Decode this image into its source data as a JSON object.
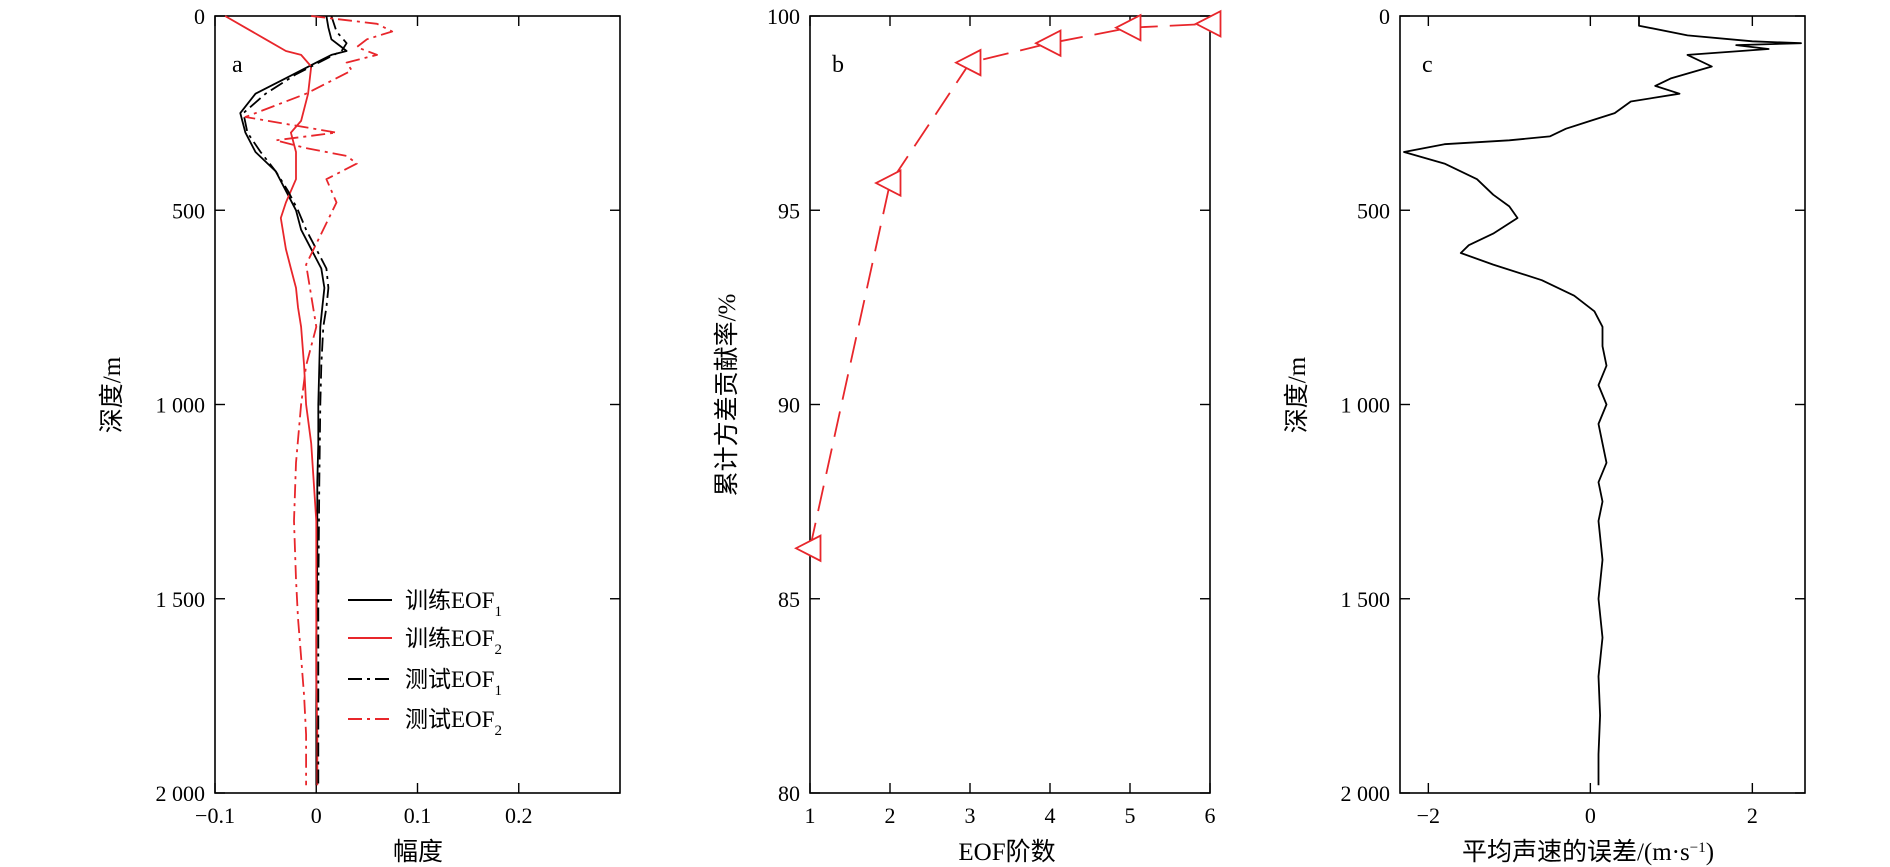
{
  "colors": {
    "black": "#000000",
    "red": "#e8262b"
  },
  "chart_data": [
    {
      "panel": "a",
      "type": "line",
      "xlabel": "幅度",
      "ylabel": "深度/m",
      "xlim": [
        -0.1,
        0.3
      ],
      "ylim": [
        2000,
        0
      ],
      "y_inverted": true,
      "xticks": [
        -0.1,
        0,
        0.1,
        0.2
      ],
      "xtick_labels": [
        "−0.1",
        "0",
        "0.1",
        "0.2"
      ],
      "yticks": [
        0,
        500,
        1000,
        1500,
        2000
      ],
      "ytick_labels": [
        "0",
        "500",
        "1 000",
        "1 500",
        "2 000"
      ],
      "legend_position": "bottom-right",
      "series": [
        {
          "name": "训练EOF",
          "subscript": "1",
          "color": "#000000",
          "style": "solid",
          "x": [
            0.01,
            0.012,
            0.015,
            0.025,
            0.03,
            0.015,
            0.0,
            -0.03,
            -0.06,
            -0.075,
            -0.07,
            -0.06,
            -0.04,
            -0.03,
            -0.02,
            -0.015,
            -0.005,
            0.005,
            0.008,
            0.006,
            0.004,
            0.003,
            0.002,
            0.002,
            0.001,
            0.001,
            0.0,
            0.0,
            0.0
          ],
          "y": [
            0,
            30,
            60,
            80,
            90,
            100,
            120,
            160,
            200,
            250,
            300,
            350,
            400,
            450,
            500,
            550,
            600,
            650,
            700,
            750,
            800,
            900,
            1000,
            1100,
            1200,
            1400,
            1600,
            1800,
            1980
          ]
        },
        {
          "name": "训练EOF",
          "subscript": "2",
          "color": "#e8262b",
          "style": "solid",
          "x": [
            -0.09,
            -0.07,
            -0.05,
            -0.03,
            -0.015,
            -0.005,
            -0.008,
            -0.015,
            -0.025,
            -0.02,
            -0.02,
            -0.03,
            -0.035,
            -0.03,
            -0.025,
            -0.02,
            -0.018,
            -0.015,
            -0.012,
            -0.01,
            -0.005,
            0.0,
            0.0,
            0.0,
            0.001,
            0.001
          ],
          "y": [
            0,
            30,
            60,
            90,
            100,
            130,
            200,
            270,
            300,
            350,
            420,
            480,
            520,
            600,
            650,
            700,
            750,
            800,
            900,
            1000,
            1100,
            1300,
            1500,
            1700,
            1850,
            1980
          ]
        },
        {
          "name": "测试EOF",
          "subscript": "1",
          "color": "#000000",
          "style": "dashdot",
          "x": [
            0.015,
            0.02,
            0.03,
            0.025,
            0.01,
            -0.02,
            -0.05,
            -0.072,
            -0.068,
            -0.055,
            -0.04,
            -0.028,
            -0.018,
            -0.01,
            0.0,
            0.01,
            0.012,
            0.01,
            0.007,
            0.005,
            0.004,
            0.003,
            0.002,
            0.002,
            0.002
          ],
          "y": [
            0,
            40,
            70,
            90,
            110,
            150,
            200,
            250,
            300,
            350,
            400,
            450,
            500,
            550,
            600,
            650,
            700,
            750,
            800,
            900,
            1000,
            1200,
            1500,
            1800,
            1980
          ]
        },
        {
          "name": "测试EOF",
          "subscript": "2",
          "color": "#e8262b",
          "style": "dashdot",
          "x": [
            -0.005,
            0.06,
            0.075,
            0.05,
            0.04,
            0.06,
            0.03,
            0.035,
            0.02,
            -0.01,
            -0.07,
            0.02,
            -0.04,
            -0.01,
            0.03,
            0.04,
            0.01,
            0.02,
            0.005,
            -0.01,
            -0.005,
            0.0,
            -0.01,
            -0.015,
            -0.02,
            -0.022,
            -0.02,
            -0.018,
            -0.015,
            -0.012,
            -0.01,
            -0.01
          ],
          "y": [
            0,
            20,
            40,
            60,
            80,
            100,
            120,
            140,
            160,
            200,
            260,
            300,
            320,
            340,
            360,
            380,
            420,
            480,
            560,
            640,
            720,
            800,
            900,
            1000,
            1150,
            1300,
            1450,
            1550,
            1650,
            1750,
            1850,
            1980
          ]
        }
      ]
    },
    {
      "panel": "b",
      "type": "line",
      "xlabel": "EOF阶数",
      "ylabel": "累计方差贡献率/%",
      "xlim": [
        1,
        6
      ],
      "ylim": [
        80,
        100
      ],
      "xticks": [
        1,
        2,
        3,
        4,
        5,
        6
      ],
      "xtick_labels": [
        "1",
        "2",
        "3",
        "4",
        "5",
        "6"
      ],
      "yticks": [
        80,
        85,
        90,
        95,
        100
      ],
      "ytick_labels": [
        "80",
        "85",
        "90",
        "95",
        "100"
      ],
      "marker": "triangle-left",
      "line_style": "dashed",
      "color": "#e8262b",
      "x": [
        1,
        2,
        3,
        4,
        5,
        6
      ],
      "values": [
        86.3,
        95.7,
        98.8,
        99.3,
        99.7,
        99.8
      ]
    },
    {
      "panel": "c",
      "type": "line",
      "xlabel": "平均声速的误差/(m·s",
      "xlabel_superscript": "−1",
      "xlabel_suffix": ")",
      "ylabel": "深度/m",
      "xlim": [
        -2.35,
        2.65
      ],
      "ylim": [
        2000,
        0
      ],
      "y_inverted": true,
      "xticks": [
        -2,
        0,
        2
      ],
      "xtick_labels": [
        "−2",
        "0",
        "2"
      ],
      "yticks": [
        0,
        500,
        1000,
        1500,
        2000
      ],
      "ytick_labels": [
        "0",
        "500",
        "1 000",
        "1 500",
        "2 000"
      ],
      "series": [
        {
          "color": "#000000",
          "style": "solid",
          "x": [
            0.6,
            0.6,
            1.2,
            2.0,
            2.6,
            1.8,
            2.2,
            1.2,
            1.5,
            1.0,
            0.8,
            1.1,
            0.5,
            0.3,
            0.0,
            -0.3,
            -0.5,
            -1.0,
            -1.8,
            -2.3,
            -1.8,
            -1.4,
            -1.2,
            -1.0,
            -0.9,
            -1.2,
            -1.5,
            -1.6,
            -1.2,
            -0.6,
            -0.2,
            0.05,
            0.15,
            0.15,
            0.2,
            0.1,
            0.2,
            0.1,
            0.15,
            0.2,
            0.1,
            0.15,
            0.1,
            0.15,
            0.1,
            0.15,
            0.1,
            0.12,
            0.1,
            0.1
          ],
          "y": [
            0,
            25,
            50,
            65,
            70,
            75,
            85,
            100,
            130,
            160,
            180,
            200,
            220,
            250,
            270,
            290,
            310,
            320,
            330,
            350,
            380,
            420,
            460,
            490,
            520,
            560,
            590,
            610,
            640,
            680,
            720,
            760,
            800,
            850,
            900,
            950,
            1000,
            1050,
            1100,
            1150,
            1200,
            1250,
            1300,
            1400,
            1500,
            1600,
            1700,
            1800,
            1900,
            1980
          ]
        }
      ]
    }
  ]
}
